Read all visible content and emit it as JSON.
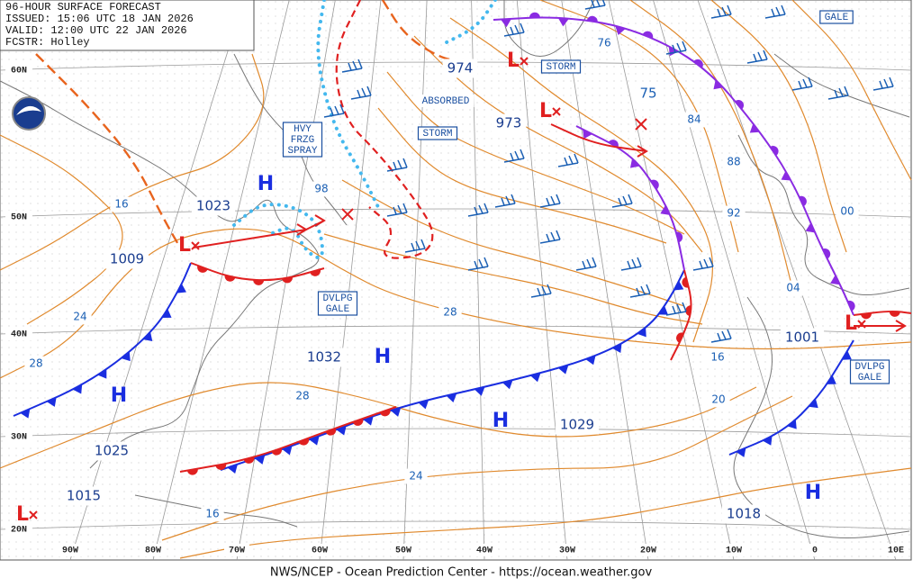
{
  "header": {
    "lines": [
      "96-HOUR SURFACE FORECAST",
      "ISSUED: 15:06 UTC 18 JAN 2026",
      "VALID: 12:00 UTC 22 JAN 2026",
      "FCSTR: Holley"
    ]
  },
  "footer": "NWS/NCEP - Ocean Prediction Center - https://ocean.weather.gov",
  "lat_labels": [
    "60N",
    "50N",
    "40N",
    "30N",
    "20N"
  ],
  "lon_labels": [
    "90W",
    "80W",
    "70W",
    "60W",
    "50W",
    "40W",
    "30W",
    "20W",
    "10W",
    "0",
    "10E"
  ],
  "highs": [
    {
      "symbol": "H",
      "pressure": "1023"
    },
    {
      "symbol": "H",
      "pressure": "1025"
    },
    {
      "symbol": "H",
      "pressure": "1032"
    },
    {
      "symbol": "H",
      "pressure": "1029"
    },
    {
      "symbol": "H",
      "pressure": "1018"
    }
  ],
  "lows": [
    {
      "symbol": "L",
      "pressure": "1009"
    },
    {
      "symbol": "L",
      "pressure": "974"
    },
    {
      "symbol": "L",
      "pressure": "973"
    },
    {
      "symbol": "L",
      "pressure": "1001"
    },
    {
      "symbol": "L",
      "pressure": "1015"
    }
  ],
  "isobar_labels": [
    "76",
    "75",
    "84",
    "88",
    "92",
    "00",
    "04",
    "16",
    "20",
    "24",
    "28",
    "98",
    "16",
    "24",
    "28",
    "16",
    "28"
  ],
  "warnings": [
    [
      "GALE"
    ],
    [
      "STORM"
    ],
    [
      "ABSORBED"
    ],
    [
      "STORM"
    ],
    [
      "HVY",
      "FRZG",
      "SPRAY"
    ],
    [
      "DVLPG",
      "GALE"
    ],
    [
      "DVLPG",
      "GALE"
    ]
  ]
}
